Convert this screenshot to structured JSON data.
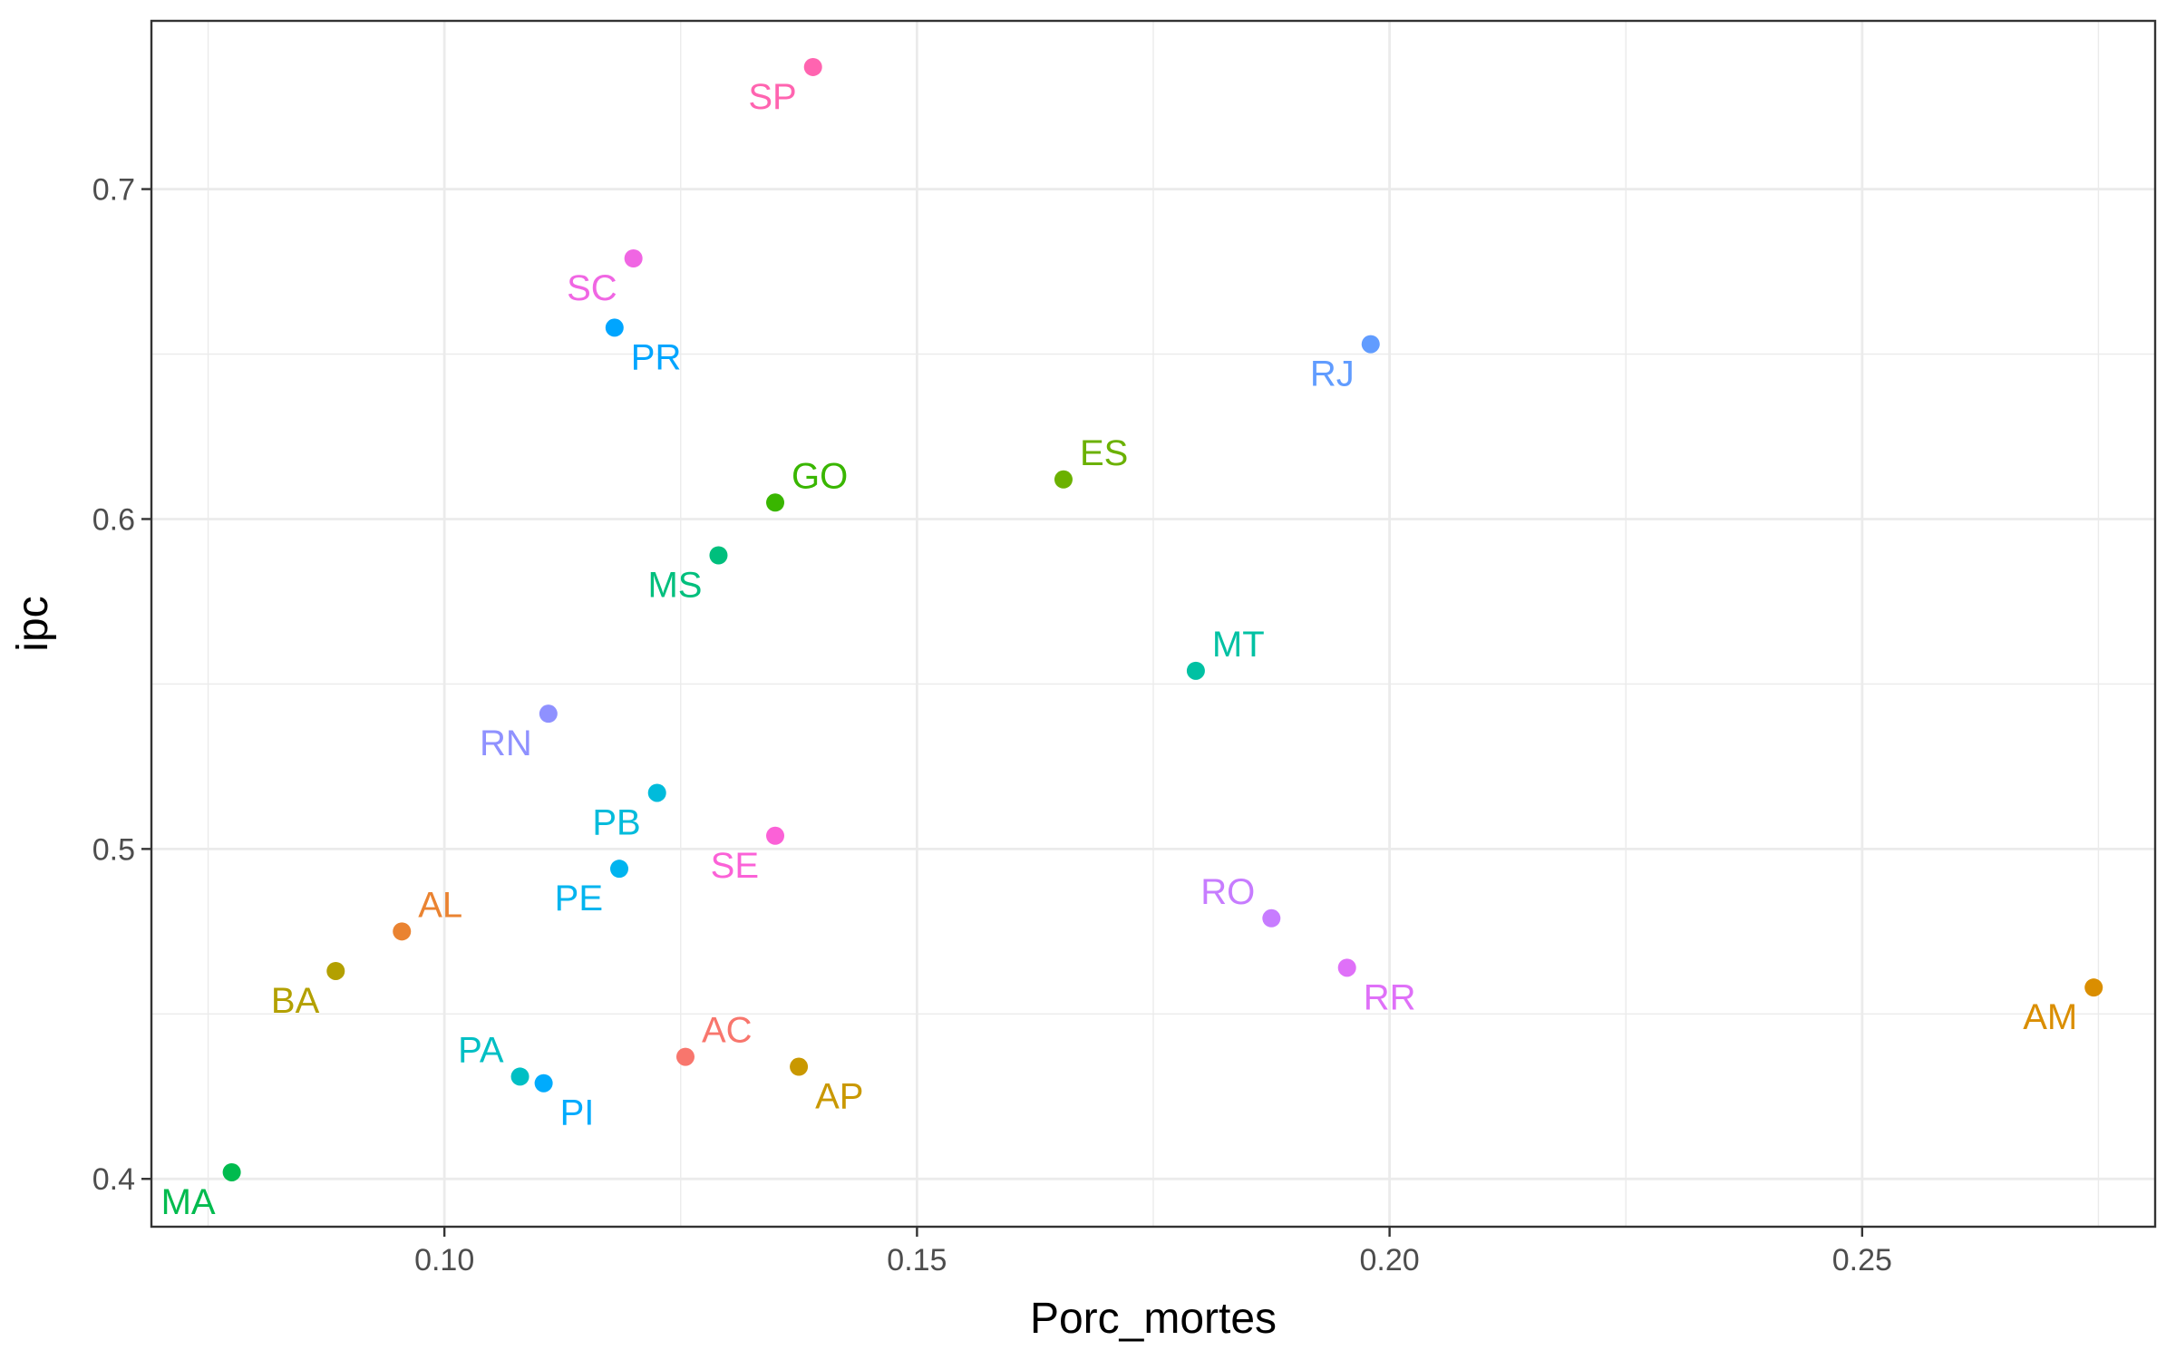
{
  "chart_data": {
    "type": "scatter",
    "title": "",
    "xlabel": "Porc_mortes",
    "ylabel": "ipc",
    "xlim": [
      0.069,
      0.281
    ],
    "ylim": [
      0.3855,
      0.751
    ],
    "x_ticks": [
      0.1,
      0.15,
      0.2,
      0.25
    ],
    "x_tick_labels": [
      "0.10",
      "0.15",
      "0.20",
      "0.25"
    ],
    "x_minor_ticks": [
      0.075,
      0.125,
      0.175,
      0.225,
      0.275
    ],
    "y_ticks": [
      0.4,
      0.5,
      0.6,
      0.7
    ],
    "y_tick_labels": [
      "0.4",
      "0.5",
      "0.6",
      "0.7"
    ],
    "y_minor_ticks": [
      0.45,
      0.55,
      0.65
    ],
    "grid": true,
    "legend": "none",
    "points": [
      {
        "label": "AC",
        "x": 0.1255,
        "y": 0.437,
        "color": "#F8766D",
        "pos": "ur"
      },
      {
        "label": "AL",
        "x": 0.0955,
        "y": 0.475,
        "color": "#EA8331",
        "pos": "ur"
      },
      {
        "label": "AM",
        "x": 0.2745,
        "y": 0.458,
        "color": "#DA8E00",
        "pos": "ll"
      },
      {
        "label": "AP",
        "x": 0.1375,
        "y": 0.434,
        "color": "#C99800",
        "pos": "lr"
      },
      {
        "label": "BA",
        "x": 0.0885,
        "y": 0.463,
        "color": "#B3A000",
        "pos": "ll"
      },
      {
        "label": "ES",
        "x": 0.1655,
        "y": 0.612,
        "color": "#6BB100",
        "pos": "ur"
      },
      {
        "label": "GO",
        "x": 0.135,
        "y": 0.605,
        "color": "#39B600",
        "pos": "ur"
      },
      {
        "label": "MA",
        "x": 0.0775,
        "y": 0.402,
        "color": "#00BB4E",
        "pos": "ll"
      },
      {
        "label": "MS",
        "x": 0.129,
        "y": 0.589,
        "color": "#00BF7D",
        "pos": "ll"
      },
      {
        "label": "MT",
        "x": 0.1795,
        "y": 0.554,
        "color": "#00C1A3",
        "pos": "ur"
      },
      {
        "label": "PA",
        "x": 0.108,
        "y": 0.431,
        "color": "#00BFC4",
        "pos": "ul"
      },
      {
        "label": "PB",
        "x": 0.1225,
        "y": 0.517,
        "color": "#00BBDB",
        "pos": "ll"
      },
      {
        "label": "PE",
        "x": 0.1185,
        "y": 0.494,
        "color": "#00B4EF",
        "pos": "ll"
      },
      {
        "label": "PI",
        "x": 0.1105,
        "y": 0.429,
        "color": "#00ABFD",
        "pos": "lr"
      },
      {
        "label": "PR",
        "x": 0.118,
        "y": 0.658,
        "color": "#00A5FF",
        "pos": "lr"
      },
      {
        "label": "RJ",
        "x": 0.198,
        "y": 0.653,
        "color": "#619CFF",
        "pos": "ll"
      },
      {
        "label": "RN",
        "x": 0.111,
        "y": 0.541,
        "color": "#8F91FF",
        "pos": "ll"
      },
      {
        "label": "RO",
        "x": 0.1875,
        "y": 0.479,
        "color": "#C77CFF",
        "pos": "ul"
      },
      {
        "label": "RR",
        "x": 0.1955,
        "y": 0.464,
        "color": "#DF70F8",
        "pos": "lr"
      },
      {
        "label": "SC",
        "x": 0.12,
        "y": 0.679,
        "color": "#F066E3",
        "pos": "ll"
      },
      {
        "label": "SE",
        "x": 0.135,
        "y": 0.504,
        "color": "#FB61D7",
        "pos": "ll"
      },
      {
        "label": "SP",
        "x": 0.139,
        "y": 0.737,
        "color": "#FF64B0",
        "pos": "ll"
      }
    ]
  }
}
